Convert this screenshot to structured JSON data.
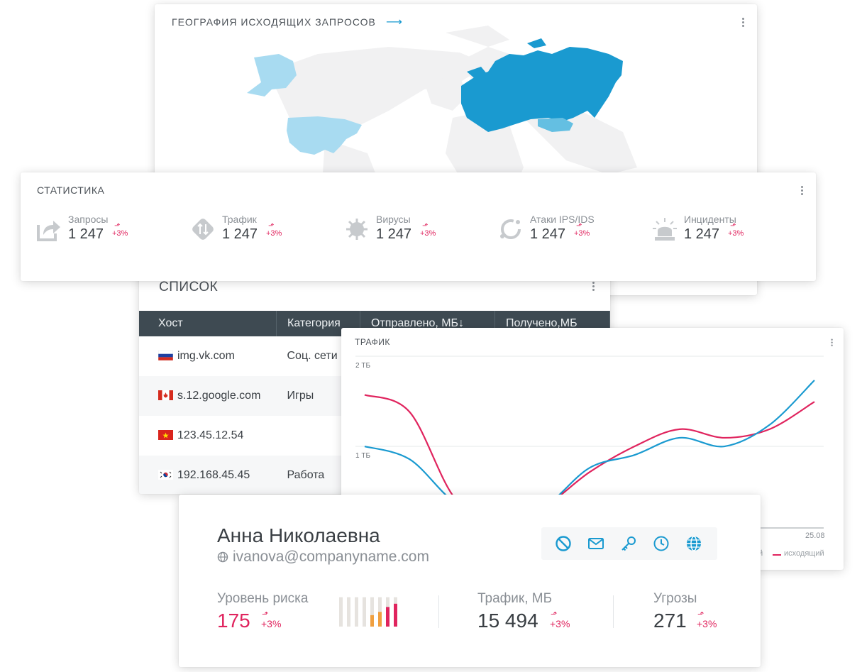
{
  "geo": {
    "title": "ГЕОГРАФИЯ ИСХОДЯЩИХ ЗАПРОСОВ",
    "accent": "#1a9ad0"
  },
  "stats": {
    "title": "СТАТИСТИКА",
    "items": [
      {
        "icon": "share-icon",
        "label": "Запросы",
        "value": "1 247",
        "delta": "+3%"
      },
      {
        "icon": "traffic-icon",
        "label": "Трафик",
        "value": "1 247",
        "delta": "+3%"
      },
      {
        "icon": "virus-icon",
        "label": "Вирусы",
        "value": "1 247",
        "delta": "+3%"
      },
      {
        "icon": "attack-icon",
        "label": "Атаки IPS/IDS",
        "value": "1 247",
        "delta": "+3%"
      },
      {
        "icon": "alarm-icon",
        "label": "Инциденты",
        "value": "1 247",
        "delta": "+3%"
      }
    ]
  },
  "list": {
    "title": "СПИСОК",
    "columns": [
      "Хост",
      "Категория",
      "Отправлено, МБ↓",
      "Получено,МБ"
    ],
    "rows": [
      {
        "flag": "ru",
        "host": "img.vk.com",
        "category": "Соц. сети"
      },
      {
        "flag": "ca",
        "host": "s.12.google.com",
        "category": "Игры"
      },
      {
        "flag": "vn",
        "host": "123.45.12.54",
        "category": ""
      },
      {
        "flag": "kr",
        "host": "192.168.45.45",
        "category": "Работа"
      }
    ]
  },
  "traffic": {
    "title": "ТРАФИК",
    "x_tick_last": "25.08",
    "legend": {
      "incoming_partial": "й",
      "outgoing": "исходящий"
    }
  },
  "chart_data": {
    "type": "line",
    "title": "ТРАФИК",
    "y_ticks": [
      "2 ТБ",
      "1 ТБ"
    ],
    "ylim": [
      0,
      2
    ],
    "x_ticks": [
      "25.08"
    ],
    "x": [
      0,
      1,
      2,
      3,
      4,
      5,
      6,
      7,
      8,
      9,
      10
    ],
    "series": [
      {
        "name": "исходящий",
        "color": "#e0245e",
        "values": [
          1.55,
          1.35,
          0.35,
          0.05,
          0.25,
          0.65,
          0.95,
          1.15,
          1.05,
          1.15,
          1.47
        ]
      },
      {
        "name": "входящий",
        "color": "#1a9ad0",
        "values": [
          0.95,
          0.8,
          0.3,
          0.1,
          0.25,
          0.7,
          0.85,
          1.05,
          0.95,
          1.2,
          1.72
        ]
      }
    ],
    "grid": true,
    "legend_placement": "bottom-right"
  },
  "profile": {
    "name": "Анна Николаевна",
    "email": "ivanova@companyname.com",
    "actions": [
      "block-icon",
      "mail-icon",
      "key-icon",
      "clock-icon",
      "globe-icon"
    ],
    "metrics": {
      "risk": {
        "label": "Уровень риска",
        "value": "175",
        "delta": "+3%",
        "color": "#e0245e",
        "bars": [
          0.9,
          0.9,
          0.9,
          0.9,
          0.9,
          0.9,
          0.9,
          0.9
        ],
        "bars_highlight": [
          0.35,
          0.45,
          0.6,
          0.7
        ]
      },
      "traffic": {
        "label": "Трафик, МБ",
        "value": "15 494",
        "delta": "+3%"
      },
      "threats": {
        "label": "Угрозы",
        "value": "271",
        "delta": "+3%"
      }
    }
  }
}
